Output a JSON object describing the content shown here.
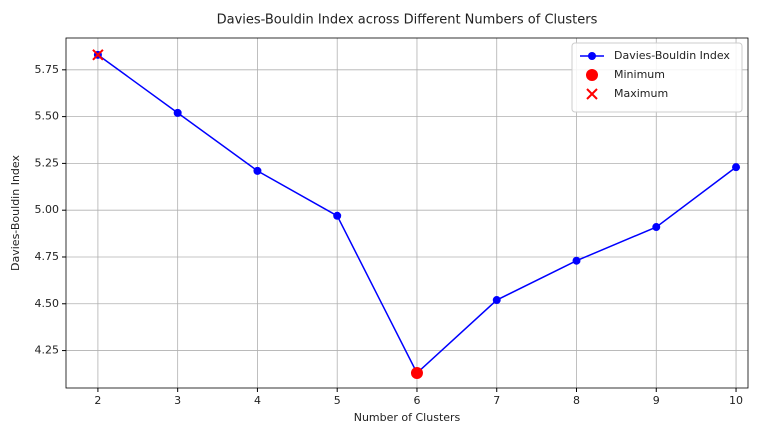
{
  "chart_data": {
    "type": "line",
    "title": "Davies-Bouldin Index across Different Numbers of Clusters",
    "xlabel": "Number of Clusters",
    "ylabel": "Davies-Bouldin Index",
    "x": [
      2,
      3,
      4,
      5,
      6,
      7,
      8,
      9,
      10
    ],
    "series": [
      {
        "name": "Davies-Bouldin Index",
        "color": "#0000ff",
        "marker": "circle",
        "line": true,
        "x": [
          2,
          3,
          4,
          5,
          6,
          7,
          8,
          9,
          10
        ],
        "values": [
          5.83,
          5.52,
          5.21,
          4.97,
          4.13,
          4.52,
          4.73,
          4.91,
          5.23
        ]
      },
      {
        "name": "Minimum",
        "color": "#ff0000",
        "marker": "big-circle",
        "line": false,
        "x": [
          6
        ],
        "values": [
          4.13
        ]
      },
      {
        "name": "Maximum",
        "color": "#ff0000",
        "marker": "cross",
        "line": false,
        "x": [
          2
        ],
        "values": [
          5.83
        ]
      }
    ],
    "xlim": [
      1.6,
      10.15
    ],
    "ylim": [
      4.05,
      5.92
    ],
    "xticks": [
      2,
      3,
      4,
      5,
      6,
      7,
      8,
      9,
      10
    ],
    "yticks": [
      4.25,
      {
        "value": 4.5,
        "label": "4.50"
      },
      4.75,
      {
        "value": 5.0,
        "label": "5.00"
      },
      5.25,
      {
        "value": 5.5,
        "label": "5.50"
      },
      5.75
    ],
    "grid": true,
    "legend": "upper right"
  }
}
